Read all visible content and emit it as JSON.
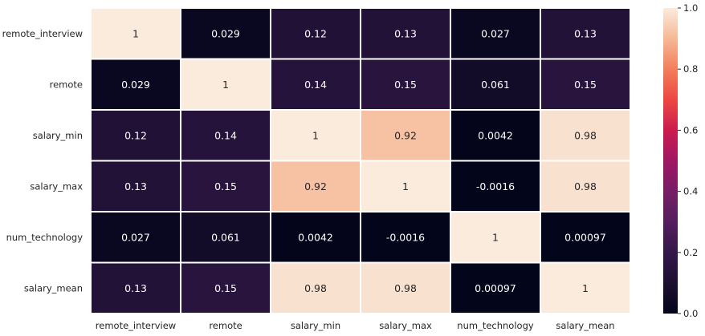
{
  "chart_data": {
    "type": "heatmap",
    "title": "",
    "xlabel": "",
    "ylabel": "",
    "rows": [
      "remote_interview",
      "remote",
      "salary_min",
      "salary_max",
      "num_technology",
      "salary_mean"
    ],
    "columns": [
      "remote_interview",
      "remote",
      "salary_min",
      "salary_max",
      "num_technology",
      "salary_mean"
    ],
    "values": [
      [
        1,
        0.029,
        0.12,
        0.13,
        0.027,
        0.13
      ],
      [
        0.029,
        1,
        0.14,
        0.15,
        0.061,
        0.15
      ],
      [
        0.12,
        0.14,
        1,
        0.92,
        0.0042,
        0.98
      ],
      [
        0.13,
        0.15,
        0.92,
        1,
        -0.0016,
        0.98
      ],
      [
        0.027,
        0.061,
        0.0042,
        -0.0016,
        1,
        0.00097
      ],
      [
        0.13,
        0.15,
        0.98,
        0.98,
        0.00097,
        1
      ]
    ],
    "annotations": [
      [
        "1",
        "0.029",
        "0.12",
        "0.13",
        "0.027",
        "0.13"
      ],
      [
        "0.029",
        "1",
        "0.14",
        "0.15",
        "0.061",
        "0.15"
      ],
      [
        "0.12",
        "0.14",
        "1",
        "0.92",
        "0.0042",
        "0.98"
      ],
      [
        "0.13",
        "0.15",
        "0.92",
        "1",
        "-0.0016",
        "0.98"
      ],
      [
        "0.027",
        "0.061",
        "0.0042",
        "-0.0016",
        "1",
        "0.00097"
      ],
      [
        "0.13",
        "0.15",
        "0.98",
        "0.98",
        "0.00097",
        "1"
      ]
    ],
    "colorbar": {
      "range": [
        0.0,
        1.0
      ],
      "ticks": [
        0.0,
        0.2,
        0.4,
        0.6,
        0.8,
        1.0
      ],
      "tick_labels": [
        "0.0",
        "0.2",
        "0.4",
        "0.6",
        "0.8",
        "1.0"
      ],
      "colormap": "rocket"
    },
    "colors": {
      "gridline": "#ffffff",
      "annotation_dark_text": "#262626",
      "annotation_light_text": "#ffffff",
      "tick_text": "#262626"
    },
    "grid": false,
    "legend": "right"
  }
}
